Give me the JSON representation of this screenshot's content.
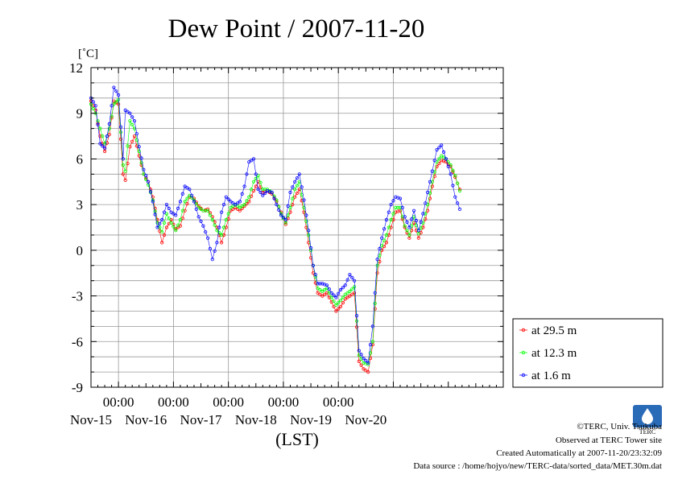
{
  "chart_data": {
    "type": "line",
    "title": "Dew Point / 2007-11-20",
    "ylabel": "[˚C]",
    "xlabel": "(LST)",
    "ylim": [
      -9,
      12
    ],
    "yticks": [
      "12",
      "9",
      "6",
      "3",
      "0",
      "-3",
      "-6",
      "-9"
    ],
    "xlim_hours": [
      -12,
      168
    ],
    "time_labels": [
      "00:00",
      "00:00",
      "00:00",
      "00:00",
      "00:00"
    ],
    "date_labels": [
      "Nov-15",
      "Nov-16",
      "Nov-17",
      "Nov-18",
      "Nov-19",
      "Nov-20"
    ],
    "grid": true,
    "legend_position": "right",
    "series": [
      {
        "name": "at 29.5 m",
        "color": "#ff0000",
        "keypoints": [
          [
            -12,
            9.8
          ],
          [
            -10,
            9.2
          ],
          [
            -8,
            7.5
          ],
          [
            -6,
            6.5
          ],
          [
            -4,
            7.6
          ],
          [
            -2,
            9.8
          ],
          [
            0,
            9.6
          ],
          [
            2,
            5.0
          ],
          [
            3,
            4.6
          ],
          [
            5,
            6.8
          ],
          [
            7,
            7.5
          ],
          [
            9,
            6.2
          ],
          [
            11,
            5.0
          ],
          [
            13,
            4.5
          ],
          [
            15,
            3.5
          ],
          [
            17,
            2.0
          ],
          [
            19,
            0.5
          ],
          [
            21,
            1.5
          ],
          [
            23,
            2.0
          ],
          [
            25,
            1.4
          ],
          [
            27,
            1.6
          ],
          [
            29,
            2.6
          ],
          [
            31,
            3.5
          ],
          [
            33,
            3.4
          ],
          [
            35,
            2.9
          ],
          [
            37,
            2.6
          ],
          [
            39,
            2.7
          ],
          [
            41,
            2.2
          ],
          [
            43,
            1.5
          ],
          [
            45,
            0.5
          ],
          [
            47,
            1.5
          ],
          [
            49,
            2.6
          ],
          [
            51,
            2.8
          ],
          [
            53,
            2.6
          ],
          [
            55,
            2.9
          ],
          [
            57,
            3.2
          ],
          [
            59,
            3.9
          ],
          [
            61,
            4.5
          ],
          [
            63,
            3.8
          ],
          [
            65,
            3.9
          ],
          [
            67,
            3.7
          ],
          [
            69,
            3.2
          ],
          [
            71,
            2.5
          ],
          [
            73,
            1.7
          ],
          [
            75,
            2.5
          ],
          [
            77,
            3.5
          ],
          [
            79,
            4.0
          ],
          [
            81,
            2.5
          ],
          [
            83,
            0.5
          ],
          [
            85,
            -1.5
          ],
          [
            87,
            -2.8
          ],
          [
            89,
            -3.0
          ],
          [
            91,
            -2.8
          ],
          [
            93,
            -3.4
          ],
          [
            95,
            -4.0
          ],
          [
            97,
            -3.7
          ],
          [
            99,
            -3.2
          ],
          [
            101,
            -3.0
          ],
          [
            103,
            -2.8
          ],
          [
            105,
            -7.3
          ],
          [
            107,
            -7.8
          ],
          [
            109,
            -8.0
          ],
          [
            111,
            -6.2
          ],
          [
            113,
            -1.5
          ],
          [
            115,
            0.0
          ],
          [
            117,
            0.5
          ],
          [
            119,
            1.5
          ],
          [
            121,
            2.5
          ],
          [
            123,
            2.6
          ],
          [
            125,
            1.5
          ],
          [
            127,
            0.8
          ],
          [
            129,
            1.8
          ],
          [
            131,
            0.8
          ],
          [
            133,
            1.5
          ],
          [
            135,
            2.6
          ],
          [
            137,
            4.2
          ],
          [
            139,
            5.5
          ],
          [
            141,
            5.9
          ],
          [
            143,
            5.8
          ],
          [
            145,
            5.5
          ],
          [
            147,
            4.8
          ],
          [
            149,
            4.0
          ]
        ]
      },
      {
        "name": "at 12.3 m",
        "color": "#00ff00",
        "keypoints": [
          [
            -12,
            9.6
          ],
          [
            -10,
            9.0
          ],
          [
            -8,
            8.0
          ],
          [
            -6,
            7.0
          ],
          [
            -4,
            8.0
          ],
          [
            -2,
            9.6
          ],
          [
            0,
            9.9
          ],
          [
            2,
            5.6
          ],
          [
            3,
            5.2
          ],
          [
            5,
            8.5
          ],
          [
            7,
            8.0
          ],
          [
            9,
            6.5
          ],
          [
            11,
            5.0
          ],
          [
            13,
            4.3
          ],
          [
            15,
            3.3
          ],
          [
            17,
            1.8
          ],
          [
            19,
            1.2
          ],
          [
            21,
            2.4
          ],
          [
            23,
            1.8
          ],
          [
            25,
            1.3
          ],
          [
            27,
            2.0
          ],
          [
            29,
            3.2
          ],
          [
            31,
            3.6
          ],
          [
            33,
            3.3
          ],
          [
            35,
            2.8
          ],
          [
            37,
            2.6
          ],
          [
            39,
            2.6
          ],
          [
            41,
            2.0
          ],
          [
            43,
            1.3
          ],
          [
            45,
            1.0
          ],
          [
            47,
            2.0
          ],
          [
            49,
            2.8
          ],
          [
            51,
            3.0
          ],
          [
            53,
            2.8
          ],
          [
            55,
            3.0
          ],
          [
            57,
            3.5
          ],
          [
            59,
            4.5
          ],
          [
            61,
            4.9
          ],
          [
            63,
            4.0
          ],
          [
            65,
            4.0
          ],
          [
            67,
            3.8
          ],
          [
            69,
            3.3
          ],
          [
            71,
            2.4
          ],
          [
            73,
            1.8
          ],
          [
            75,
            2.8
          ],
          [
            77,
            4.0
          ],
          [
            79,
            4.5
          ],
          [
            81,
            2.8
          ],
          [
            83,
            1.0
          ],
          [
            85,
            -1.0
          ],
          [
            87,
            -2.5
          ],
          [
            89,
            -2.7
          ],
          [
            91,
            -2.5
          ],
          [
            93,
            -3.1
          ],
          [
            95,
            -3.6
          ],
          [
            97,
            -3.3
          ],
          [
            99,
            -2.9
          ],
          [
            101,
            -2.7
          ],
          [
            103,
            -2.4
          ],
          [
            105,
            -6.9
          ],
          [
            107,
            -7.4
          ],
          [
            109,
            -7.5
          ],
          [
            111,
            -6.0
          ],
          [
            113,
            -1.0
          ],
          [
            115,
            0.3
          ],
          [
            117,
            1.0
          ],
          [
            119,
            2.0
          ],
          [
            121,
            2.8
          ],
          [
            123,
            2.8
          ],
          [
            125,
            1.6
          ],
          [
            127,
            1.0
          ],
          [
            129,
            2.2
          ],
          [
            131,
            1.1
          ],
          [
            133,
            1.8
          ],
          [
            135,
            3.0
          ],
          [
            137,
            4.5
          ],
          [
            139,
            5.8
          ],
          [
            141,
            6.2
          ],
          [
            143,
            6.0
          ],
          [
            145,
            5.6
          ],
          [
            147,
            4.9
          ],
          [
            149,
            3.9
          ]
        ]
      },
      {
        "name": "at 1.6 m",
        "color": "#0000ff",
        "keypoints": [
          [
            -12,
            10.0
          ],
          [
            -10,
            9.5
          ],
          [
            -8,
            7.0
          ],
          [
            -6,
            6.7
          ],
          [
            -4,
            8.3
          ],
          [
            -2,
            10.7
          ],
          [
            0,
            10.2
          ],
          [
            2,
            6.0
          ],
          [
            3,
            9.2
          ],
          [
            5,
            9.0
          ],
          [
            7,
            8.5
          ],
          [
            9,
            6.8
          ],
          [
            11,
            5.3
          ],
          [
            13,
            4.5
          ],
          [
            15,
            3.2
          ],
          [
            17,
            1.5
          ],
          [
            19,
            2.0
          ],
          [
            21,
            3.0
          ],
          [
            23,
            2.5
          ],
          [
            25,
            2.3
          ],
          [
            27,
            3.2
          ],
          [
            29,
            4.2
          ],
          [
            31,
            4.0
          ],
          [
            33,
            3.2
          ],
          [
            35,
            2.2
          ],
          [
            37,
            1.6
          ],
          [
            39,
            0.8
          ],
          [
            41,
            -0.6
          ],
          [
            43,
            0.5
          ],
          [
            45,
            2.5
          ],
          [
            47,
            3.5
          ],
          [
            49,
            3.2
          ],
          [
            51,
            3.0
          ],
          [
            53,
            3.2
          ],
          [
            55,
            4.2
          ],
          [
            57,
            5.8
          ],
          [
            59,
            6.0
          ],
          [
            61,
            4.0
          ],
          [
            63,
            3.6
          ],
          [
            65,
            3.9
          ],
          [
            67,
            3.8
          ],
          [
            69,
            3.0
          ],
          [
            71,
            2.3
          ],
          [
            73,
            2.0
          ],
          [
            75,
            3.8
          ],
          [
            77,
            4.5
          ],
          [
            79,
            5.0
          ],
          [
            81,
            3.3
          ],
          [
            83,
            1.3
          ],
          [
            85,
            -1.0
          ],
          [
            87,
            -2.2
          ],
          [
            89,
            -2.2
          ],
          [
            91,
            -2.3
          ],
          [
            93,
            -2.8
          ],
          [
            95,
            -3.1
          ],
          [
            97,
            -2.6
          ],
          [
            99,
            -2.3
          ],
          [
            101,
            -1.6
          ],
          [
            103,
            -2.0
          ],
          [
            105,
            -6.6
          ],
          [
            107,
            -7.1
          ],
          [
            109,
            -7.4
          ],
          [
            111,
            -5.0
          ],
          [
            113,
            -0.6
          ],
          [
            115,
            0.8
          ],
          [
            117,
            2.0
          ],
          [
            119,
            3.0
          ],
          [
            121,
            3.5
          ],
          [
            123,
            3.4
          ],
          [
            125,
            2.2
          ],
          [
            127,
            1.5
          ],
          [
            129,
            2.6
          ],
          [
            131,
            1.3
          ],
          [
            133,
            2.4
          ],
          [
            135,
            3.8
          ],
          [
            137,
            5.2
          ],
          [
            139,
            6.6
          ],
          [
            141,
            6.9
          ],
          [
            143,
            6.0
          ],
          [
            145,
            5.0
          ],
          [
            147,
            3.5
          ],
          [
            149,
            2.7
          ]
        ]
      }
    ]
  },
  "footer": {
    "credit": "©TERC, Univ. Tsukuba",
    "observed": "Observed at TERC Tower site",
    "created": "Created Automatically at 2007-11-20/23:32:09",
    "source": "Data source : /home/hojyo/new/TERC-data/sorted_data/MET.30m.dat",
    "logo_text": "TERC"
  }
}
